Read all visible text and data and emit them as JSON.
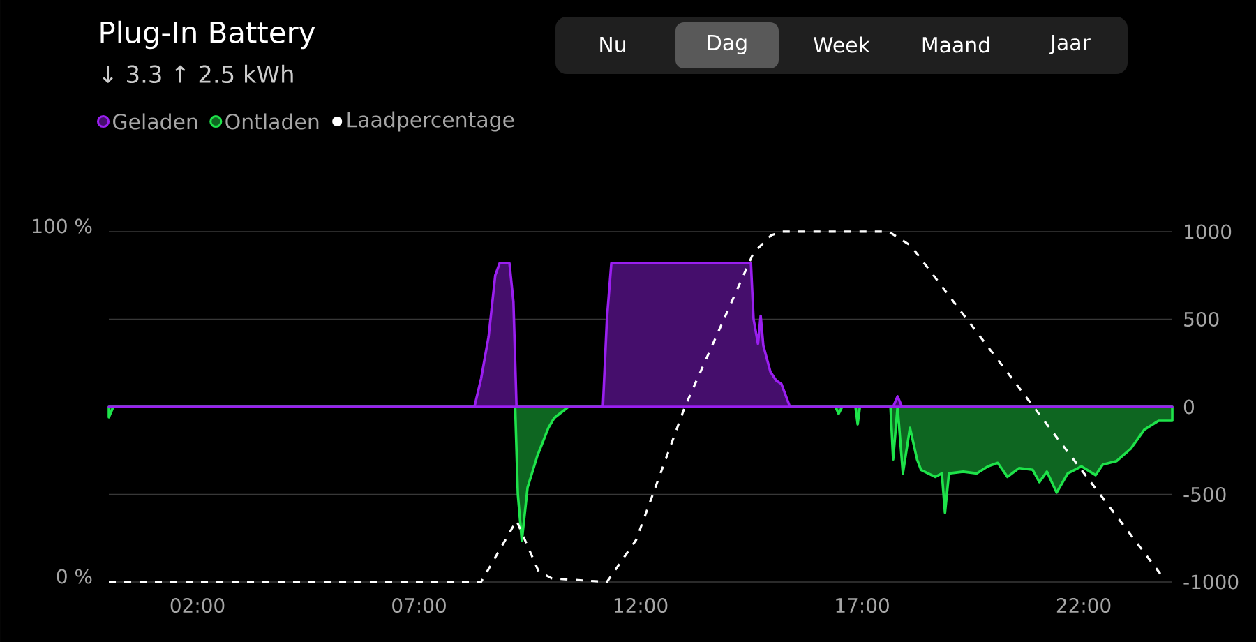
{
  "chart_data": {
    "type": "area",
    "title": "Plug-In Battery",
    "subtitle": "↓ 3.3 ↑ 2.5 kWh",
    "annotations": [
      "Nu",
      "Dag",
      "Week",
      "Maand",
      "Jaar"
    ],
    "legend": "top left",
    "grid": "y",
    "xlim": [
      0,
      24
    ],
    "xticks": [
      {
        "value": 2,
        "label": "02:00"
      },
      {
        "value": 7,
        "label": "07:00"
      },
      {
        "value": 12,
        "label": "12:00"
      },
      {
        "value": 17,
        "label": "17:00"
      },
      {
        "value": 22,
        "label": "22:00"
      }
    ],
    "ylim": [
      0,
      100
    ],
    "yticks": [
      {
        "value": 0,
        "label": "0 %"
      },
      {
        "value": 100,
        "label": "100 %"
      }
    ],
    "y2lim": [
      -1000,
      1000
    ],
    "y2ticks": [
      -1000,
      -500,
      0,
      500,
      1000
    ],
    "series": [
      {
        "name": "Geladen",
        "color": "#9a1ff0",
        "axis": "y2",
        "x": [
          0,
          8.19,
          8.25,
          8.4,
          8.57,
          8.72,
          8.82,
          9.04,
          9.13,
          9.2,
          11.15,
          11.24,
          11.34,
          14.49,
          14.55,
          14.65,
          14.71,
          14.77,
          14.93,
          15.06,
          15.18,
          15.37,
          17.7,
          17.8,
          17.9,
          24
        ],
        "values": [
          0,
          0,
          0,
          160,
          400,
          750,
          820,
          820,
          600,
          0,
          0,
          500,
          820,
          820,
          500,
          360,
          520,
          350,
          200,
          150,
          130,
          0,
          0,
          60,
          0,
          0
        ]
      },
      {
        "name": "Ontladen",
        "color": "#1ee34a",
        "axis": "y2",
        "x": [
          0,
          0.1,
          9.17,
          9.23,
          9.32,
          9.45,
          9.67,
          9.92,
          10.05,
          10.37,
          16.4,
          16.47,
          16.55,
          16.85,
          16.9,
          16.95,
          17.64,
          17.7,
          17.8,
          17.92,
          18.08,
          18.24,
          18.33,
          18.49,
          18.65,
          18.8,
          18.87,
          18.96,
          19.28,
          19.59,
          19.84,
          20.06,
          20.28,
          20.54,
          20.85,
          21.0,
          21.17,
          21.39,
          21.64,
          21.95,
          22.27,
          22.43,
          22.74,
          23.06,
          23.37,
          23.69,
          24
        ],
        "values": [
          -60,
          0,
          0,
          -500,
          -765,
          -460,
          -280,
          -120,
          -64,
          0,
          0,
          -40,
          0,
          0,
          -100,
          0,
          0,
          -300,
          0,
          -380,
          -120,
          -300,
          -360,
          -380,
          -400,
          -380,
          -605,
          -380,
          -370,
          -380,
          -340,
          -320,
          -400,
          -350,
          -360,
          -430,
          -370,
          -490,
          -380,
          -340,
          -390,
          -330,
          -310,
          -240,
          -130,
          -80,
          -80
        ]
      },
      {
        "name": "Laadpercentage",
        "color": "#ffffff",
        "type": "line",
        "line_style": "dashed",
        "x": [
          0,
          8.4,
          9.2,
          9.7,
          10.0,
          11.24,
          11.9,
          13.0,
          14.55,
          14.95,
          15.2,
          17.6,
          18.1,
          20.75,
          23.75
        ],
        "values": [
          0,
          0,
          17.5,
          3,
          1,
          0,
          12,
          50,
          94,
          99,
          100,
          100,
          96,
          52,
          2
        ]
      }
    ]
  }
}
